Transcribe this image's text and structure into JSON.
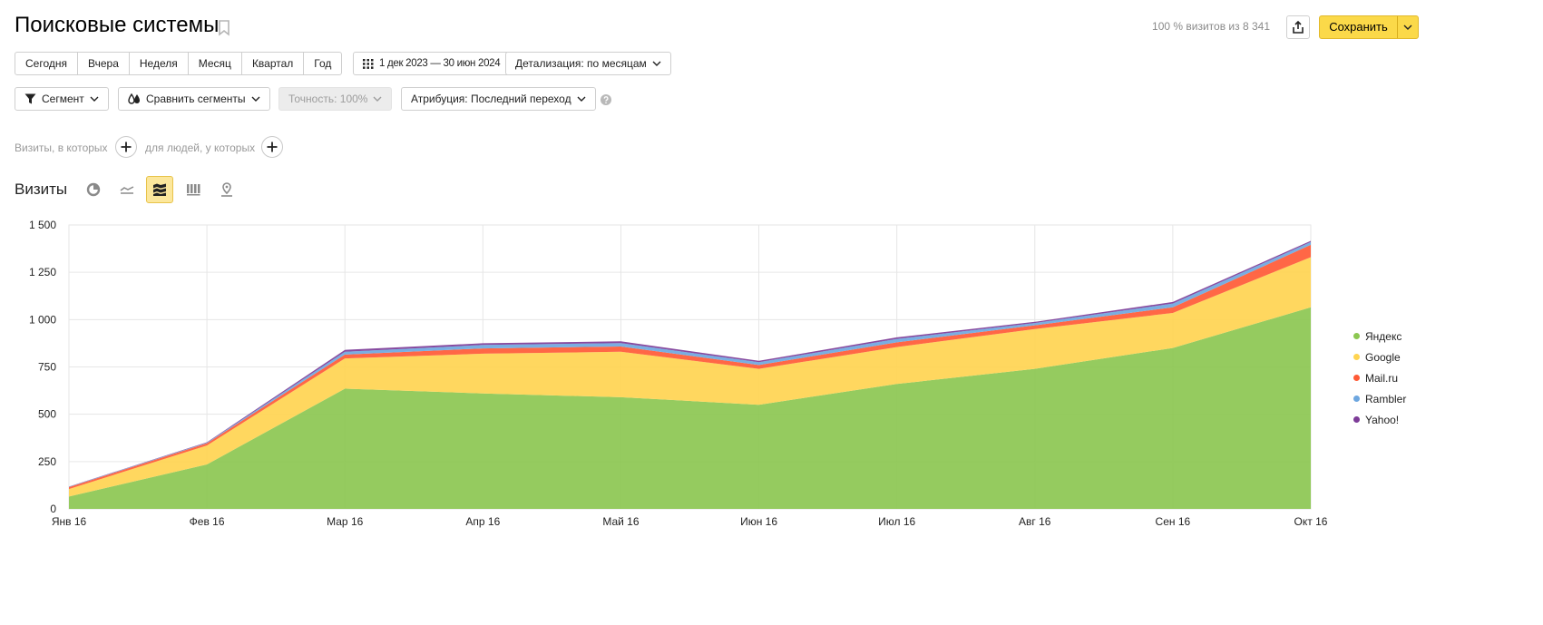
{
  "header": {
    "title": "Поисковые системы",
    "summary": "100 % визитов из 8 341",
    "save_label": "Сохранить"
  },
  "period_tabs": [
    "Сегодня",
    "Вчера",
    "Неделя",
    "Месяц",
    "Квартал",
    "Год"
  ],
  "date_range": "1 дек 2023 — 30 июн 2024",
  "detail": "Детализация: по месяцам",
  "filters": {
    "segment": "Сегмент",
    "compare": "Сравнить сегменты",
    "accuracy": "Точность: 100%",
    "attribution": "Атрибуция: Последний переход"
  },
  "conditions": {
    "visits_label": "Визиты, в которых",
    "people_label": "для людей, у которых"
  },
  "chart_section": {
    "title": "Визиты",
    "chart_types": [
      "pie-chart-icon",
      "line-chart-icon",
      "stacked-area-icon",
      "column-chart-icon",
      "map-icon"
    ],
    "active_type": "stacked-area-icon"
  },
  "chart_data": {
    "type": "area",
    "stacked": true,
    "title": "",
    "xlabel": "",
    "ylabel": "",
    "categories": [
      "Янв 16",
      "Фев 16",
      "Мар 16",
      "Апр 16",
      "Май 16",
      "Июн 16",
      "Июл 16",
      "Авг 16",
      "Сен 16",
      "Окт 16"
    ],
    "ylim": [
      0,
      1500
    ],
    "yticks": [
      0,
      250,
      500,
      750,
      1000,
      1250,
      1500
    ],
    "ytick_labels": [
      "0",
      "250",
      "500",
      "750",
      "1 000",
      "1 250",
      "1 500"
    ],
    "grid": true,
    "legend_position": "right",
    "series": [
      {
        "name": "Яндекс",
        "color": "#8cc751",
        "values": [
          65,
          235,
          635,
          610,
          590,
          550,
          660,
          740,
          850,
          1065
        ]
      },
      {
        "name": "Google",
        "color": "#ffd451",
        "values": [
          40,
          100,
          160,
          210,
          240,
          190,
          195,
          210,
          185,
          265
        ]
      },
      {
        "name": "Mail.ru",
        "color": "#ff5a36",
        "values": [
          10,
          12,
          20,
          28,
          28,
          20,
          25,
          20,
          30,
          65
        ]
      },
      {
        "name": "Rambler",
        "color": "#6ea7e0",
        "values": [
          2,
          3,
          15,
          18,
          18,
          15,
          18,
          12,
          20,
          15
        ]
      },
      {
        "name": "Yahoo!",
        "color": "#7d3c98",
        "values": [
          1,
          2,
          10,
          9,
          9,
          7,
          8,
          6,
          8,
          6
        ]
      }
    ]
  }
}
